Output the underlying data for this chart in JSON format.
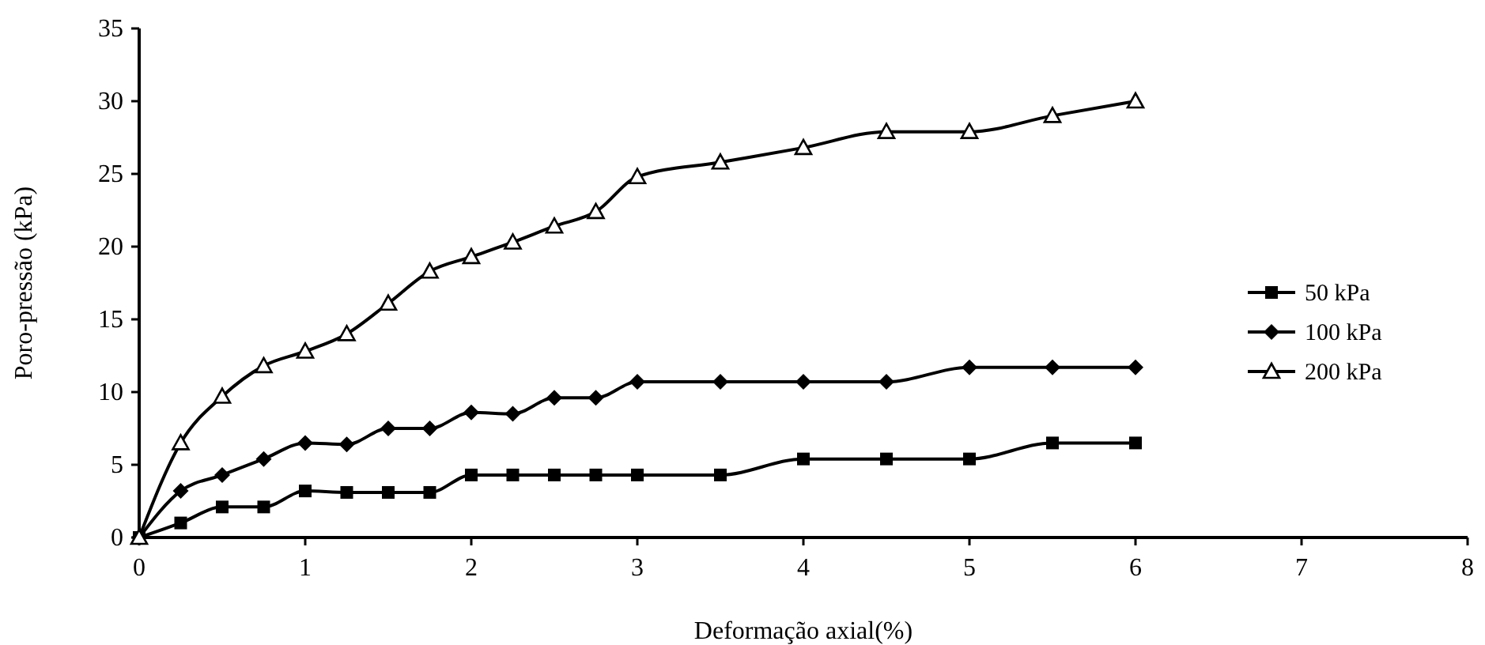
{
  "chart_data": {
    "type": "line",
    "xlabel": "Deformação axial(%)",
    "ylabel": "Poro-pressão (kPa)",
    "x": [
      0,
      0.25,
      0.5,
      0.75,
      1,
      1.25,
      1.5,
      1.75,
      2,
      2.25,
      2.5,
      2.75,
      3,
      3.5,
      4,
      4.5,
      5,
      5.5,
      6
    ],
    "xlim": [
      0,
      8
    ],
    "xticks": [
      0,
      1,
      2,
      3,
      4,
      5,
      6,
      7,
      8
    ],
    "ylim": [
      0,
      35
    ],
    "yticks": [
      0,
      5,
      10,
      15,
      20,
      25,
      30,
      35
    ],
    "grid": false,
    "legend": "right",
    "series": [
      {
        "name": "50 kPa",
        "color": "#000000",
        "marker": "square",
        "values": [
          0,
          1,
          2.1,
          2.1,
          3.2,
          3.1,
          3.1,
          3.1,
          4.3,
          4.3,
          4.3,
          4.3,
          4.3,
          4.3,
          5.4,
          5.4,
          5.4,
          6.5,
          6.5
        ]
      },
      {
        "name": "100 kPa",
        "color": "#000000",
        "marker": "diamond",
        "values": [
          0,
          3.2,
          4.3,
          5.4,
          6.5,
          6.4,
          7.5,
          7.5,
          8.6,
          8.5,
          9.6,
          9.6,
          10.7,
          10.7,
          10.7,
          10.7,
          11.7,
          11.7,
          11.7
        ]
      },
      {
        "name": "200 kPa",
        "color": "#000000",
        "marker": "triangle",
        "values": [
          0,
          6.5,
          9.7,
          11.8,
          12.8,
          14,
          16.1,
          18.3,
          19.3,
          20.3,
          21.4,
          22.4,
          24.8,
          25.8,
          26.8,
          27.9,
          27.9,
          29,
          30
        ]
      }
    ]
  }
}
